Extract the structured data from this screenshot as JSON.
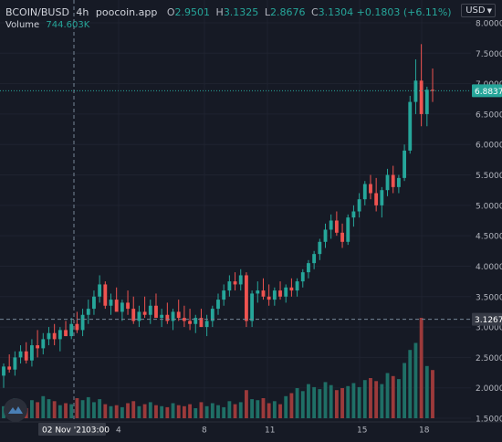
{
  "legend": {
    "symbol": "BCOIN/BUSD",
    "interval": "4h",
    "source": "poocoin.app",
    "open_label": "O",
    "open": "2.9501",
    "high_label": "H",
    "high": "3.1325",
    "low_label": "L",
    "low": "2.8676",
    "close_label": "C",
    "close": "3.1304",
    "change": "+0.1803 (+6.11%)",
    "volume_label": "Volume",
    "volume_value": "744.603K"
  },
  "currency": {
    "label": "USD",
    "icon": "chevron-down-icon"
  },
  "colors": {
    "background": "#161a25",
    "up": "#26a69a",
    "down": "#ef5350",
    "up_volume": "#1f6f66",
    "down_volume": "#9c3a3b",
    "grid": "#1f2330",
    "crosshair": "#758696"
  },
  "chart_data": {
    "type": "candlestick",
    "price_axis_labels": [
      "8.0000",
      "7.5000",
      "7.0000",
      "6.5000",
      "6.0000",
      "5.5000",
      "5.0000",
      "4.5000",
      "4.0000",
      "3.5000",
      "3.0000",
      "2.5000",
      "2.0000",
      "1.5000"
    ],
    "ylim": [
      1.5,
      8.1
    ],
    "time_axis_labels": [
      "02 Nov '21",
      "03:00",
      "4",
      "8",
      "11",
      "15",
      "18"
    ],
    "last_price_label": "6.8837",
    "last_price": 6.8837,
    "crosshair_price_label": "3.1267",
    "crosshair_price": 3.1267,
    "crosshair_time_label": "02 Nov '21  03:00",
    "candles": [
      [
        2.2,
        2.4,
        2.0,
        2.35
      ],
      [
        2.35,
        2.55,
        2.25,
        2.3
      ],
      [
        2.3,
        2.6,
        2.2,
        2.5
      ],
      [
        2.5,
        2.7,
        2.4,
        2.6
      ],
      [
        2.6,
        2.75,
        2.4,
        2.45
      ],
      [
        2.45,
        2.8,
        2.35,
        2.7
      ],
      [
        2.7,
        2.95,
        2.5,
        2.65
      ],
      [
        2.65,
        2.9,
        2.55,
        2.8
      ],
      [
        2.8,
        3.0,
        2.7,
        2.9
      ],
      [
        2.9,
        3.05,
        2.7,
        2.8
      ],
      [
        2.8,
        3.0,
        2.6,
        2.95
      ],
      [
        2.95,
        3.1,
        2.85,
        2.85
      ],
      [
        2.85,
        3.15,
        2.8,
        3.05
      ],
      [
        3.05,
        3.25,
        2.9,
        2.95
      ],
      [
        2.95,
        3.3,
        2.85,
        3.2
      ],
      [
        3.2,
        3.45,
        3.05,
        3.3
      ],
      [
        3.3,
        3.6,
        3.2,
        3.5
      ],
      [
        3.5,
        3.85,
        3.4,
        3.7
      ],
      [
        3.7,
        3.75,
        3.3,
        3.35
      ],
      [
        3.35,
        3.55,
        3.2,
        3.45
      ],
      [
        3.45,
        3.65,
        3.3,
        3.25
      ],
      [
        3.25,
        3.45,
        3.1,
        3.4
      ],
      [
        3.4,
        3.6,
        3.2,
        3.3
      ],
      [
        3.3,
        3.5,
        3.05,
        3.1
      ],
      [
        3.1,
        3.35,
        3.0,
        3.25
      ],
      [
        3.25,
        3.5,
        3.15,
        3.2
      ],
      [
        3.2,
        3.45,
        3.05,
        3.35
      ],
      [
        3.35,
        3.55,
        3.2,
        3.15
      ],
      [
        3.15,
        3.3,
        3.0,
        3.2
      ],
      [
        3.2,
        3.4,
        3.05,
        3.1
      ],
      [
        3.1,
        3.3,
        2.95,
        3.25
      ],
      [
        3.25,
        3.45,
        3.1,
        3.15
      ],
      [
        3.15,
        3.35,
        3.0,
        3.1
      ],
      [
        3.1,
        3.3,
        2.95,
        3.05
      ],
      [
        3.05,
        3.2,
        2.9,
        3.15
      ],
      [
        3.15,
        3.3,
        3.0,
        3.0
      ],
      [
        3.0,
        3.2,
        2.85,
        3.1
      ],
      [
        3.1,
        3.35,
        3.0,
        3.3
      ],
      [
        3.3,
        3.55,
        3.2,
        3.45
      ],
      [
        3.45,
        3.7,
        3.35,
        3.6
      ],
      [
        3.6,
        3.85,
        3.5,
        3.75
      ],
      [
        3.75,
        3.9,
        3.6,
        3.7
      ],
      [
        3.7,
        3.95,
        3.6,
        3.85
      ],
      [
        3.85,
        3.9,
        3.0,
        3.1
      ],
      [
        3.1,
        3.6,
        3.0,
        3.55
      ],
      [
        3.55,
        3.75,
        3.4,
        3.6
      ],
      [
        3.6,
        3.8,
        3.45,
        3.5
      ],
      [
        3.5,
        3.7,
        3.35,
        3.45
      ],
      [
        3.45,
        3.65,
        3.35,
        3.6
      ],
      [
        3.6,
        3.75,
        3.45,
        3.5
      ],
      [
        3.5,
        3.7,
        3.4,
        3.65
      ],
      [
        3.65,
        3.8,
        3.5,
        3.6
      ],
      [
        3.6,
        3.8,
        3.5,
        3.75
      ],
      [
        3.75,
        3.95,
        3.65,
        3.9
      ],
      [
        3.9,
        4.1,
        3.8,
        4.05
      ],
      [
        4.05,
        4.25,
        3.95,
        4.2
      ],
      [
        4.2,
        4.45,
        4.1,
        4.4
      ],
      [
        4.4,
        4.7,
        4.3,
        4.6
      ],
      [
        4.6,
        4.85,
        4.45,
        4.75
      ],
      [
        4.75,
        4.9,
        4.5,
        4.55
      ],
      [
        4.55,
        4.7,
        4.3,
        4.4
      ],
      [
        4.4,
        4.85,
        4.35,
        4.8
      ],
      [
        4.8,
        5.0,
        4.65,
        4.9
      ],
      [
        4.9,
        5.2,
        4.8,
        5.1
      ],
      [
        5.1,
        5.4,
        5.0,
        5.35
      ],
      [
        5.35,
        5.5,
        5.1,
        5.2
      ],
      [
        5.2,
        5.45,
        4.9,
        5.0
      ],
      [
        5.0,
        5.3,
        4.8,
        5.25
      ],
      [
        5.25,
        5.6,
        5.15,
        5.5
      ],
      [
        5.5,
        5.65,
        5.2,
        5.3
      ],
      [
        5.3,
        5.5,
        5.2,
        5.45
      ],
      [
        5.45,
        6.0,
        5.4,
        5.9
      ],
      [
        5.9,
        6.8,
        5.85,
        6.7
      ],
      [
        6.7,
        7.4,
        6.5,
        7.05
      ],
      [
        7.05,
        7.65,
        6.3,
        6.5
      ],
      [
        6.5,
        6.95,
        6.3,
        6.9
      ],
      [
        6.9,
        7.25,
        6.7,
        6.88
      ]
    ],
    "volumes": [
      0.12,
      0.15,
      0.2,
      0.14,
      0.1,
      0.18,
      0.16,
      0.22,
      0.19,
      0.17,
      0.13,
      0.15,
      0.14,
      0.2,
      0.18,
      0.21,
      0.16,
      0.19,
      0.14,
      0.12,
      0.13,
      0.11,
      0.15,
      0.17,
      0.12,
      0.14,
      0.16,
      0.13,
      0.12,
      0.11,
      0.15,
      0.13,
      0.12,
      0.14,
      0.1,
      0.16,
      0.12,
      0.15,
      0.13,
      0.11,
      0.17,
      0.14,
      0.16,
      0.28,
      0.19,
      0.18,
      0.2,
      0.15,
      0.17,
      0.14,
      0.22,
      0.25,
      0.3,
      0.27,
      0.34,
      0.31,
      0.29,
      0.36,
      0.33,
      0.28,
      0.3,
      0.32,
      0.35,
      0.31,
      0.38,
      0.4,
      0.37,
      0.34,
      0.45,
      0.42,
      0.39,
      0.55,
      0.68,
      0.75,
      1.0,
      0.52,
      0.48
    ]
  }
}
